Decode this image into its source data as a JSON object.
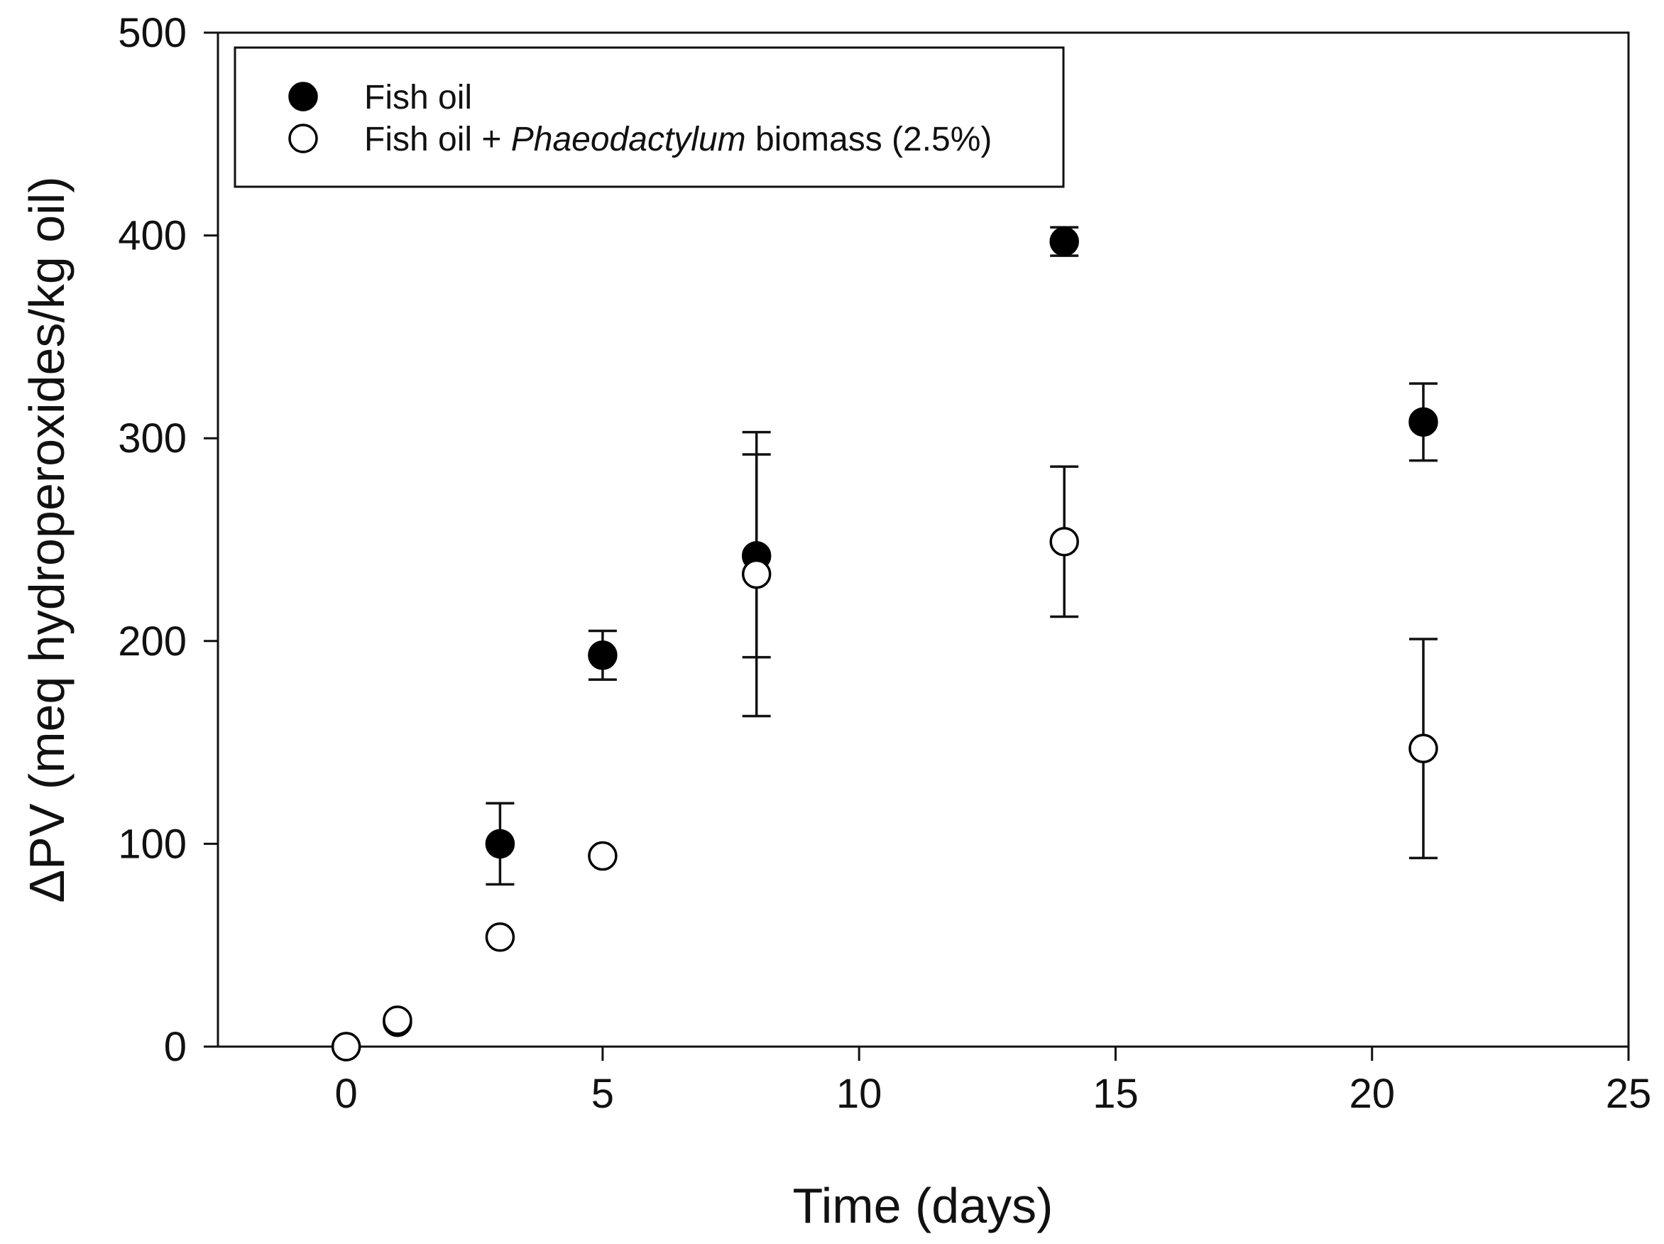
{
  "chart_data": {
    "type": "scatter",
    "title": "",
    "xlabel": "Time (days)",
    "ylabel": "ΔPV (meq hydroperoxides/kg oil)",
    "xlim": [
      -2.5,
      25
    ],
    "ylim": [
      0,
      500
    ],
    "xticks": [
      0,
      5,
      10,
      15,
      20,
      25
    ],
    "yticks": [
      0,
      100,
      200,
      300,
      400,
      500
    ],
    "grid": false,
    "legend_position": "top-left",
    "series": [
      {
        "name": "Fish oil",
        "legend_label": "Fish oil",
        "marker": "filled-circle",
        "color": "#000000",
        "x": [
          0,
          1,
          3,
          5,
          8,
          14,
          21
        ],
        "y": [
          0,
          12,
          100,
          193,
          242,
          397,
          308
        ],
        "err_low": [
          0,
          0,
          20,
          12,
          50,
          7,
          19
        ],
        "err_high": [
          0,
          0,
          20,
          12,
          50,
          7,
          19
        ]
      },
      {
        "name": "Fish oil + Phaeodactylum biomass (2.5%)",
        "legend_label": {
          "prefix": "Fish oil + ",
          "italic": "Phaeodactylum",
          "suffix": " biomass (2.5%)"
        },
        "marker": "open-circle",
        "color": "#000000",
        "x": [
          0,
          1,
          3,
          5,
          8,
          14,
          21
        ],
        "y": [
          0,
          13,
          54,
          94,
          233,
          249,
          147
        ],
        "err_low": [
          0,
          0,
          0,
          0,
          70,
          37,
          54
        ],
        "err_high": [
          0,
          0,
          0,
          0,
          70,
          37,
          54
        ]
      }
    ]
  }
}
